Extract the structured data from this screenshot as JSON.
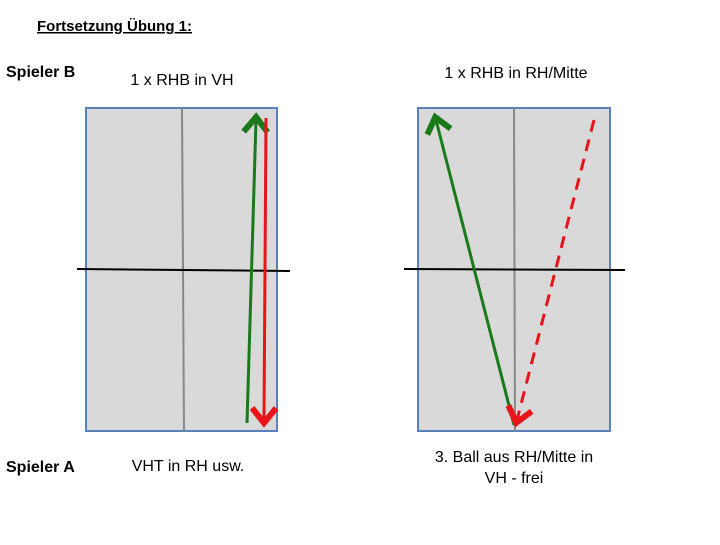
{
  "header": {
    "title": "Fortsetzung Übung 1:"
  },
  "players": {
    "top": "Spieler B",
    "bottom": "Spieler A"
  },
  "diagrams": [
    {
      "top_label": "1 x RHB in VH",
      "bottom_label": "VHT in RH usw."
    },
    {
      "top_label": "1 x RHB in RH/Mitte",
      "bottom_label_lines": [
        "3. Ball aus RH/Mitte in",
        "VH - frei"
      ]
    }
  ]
}
